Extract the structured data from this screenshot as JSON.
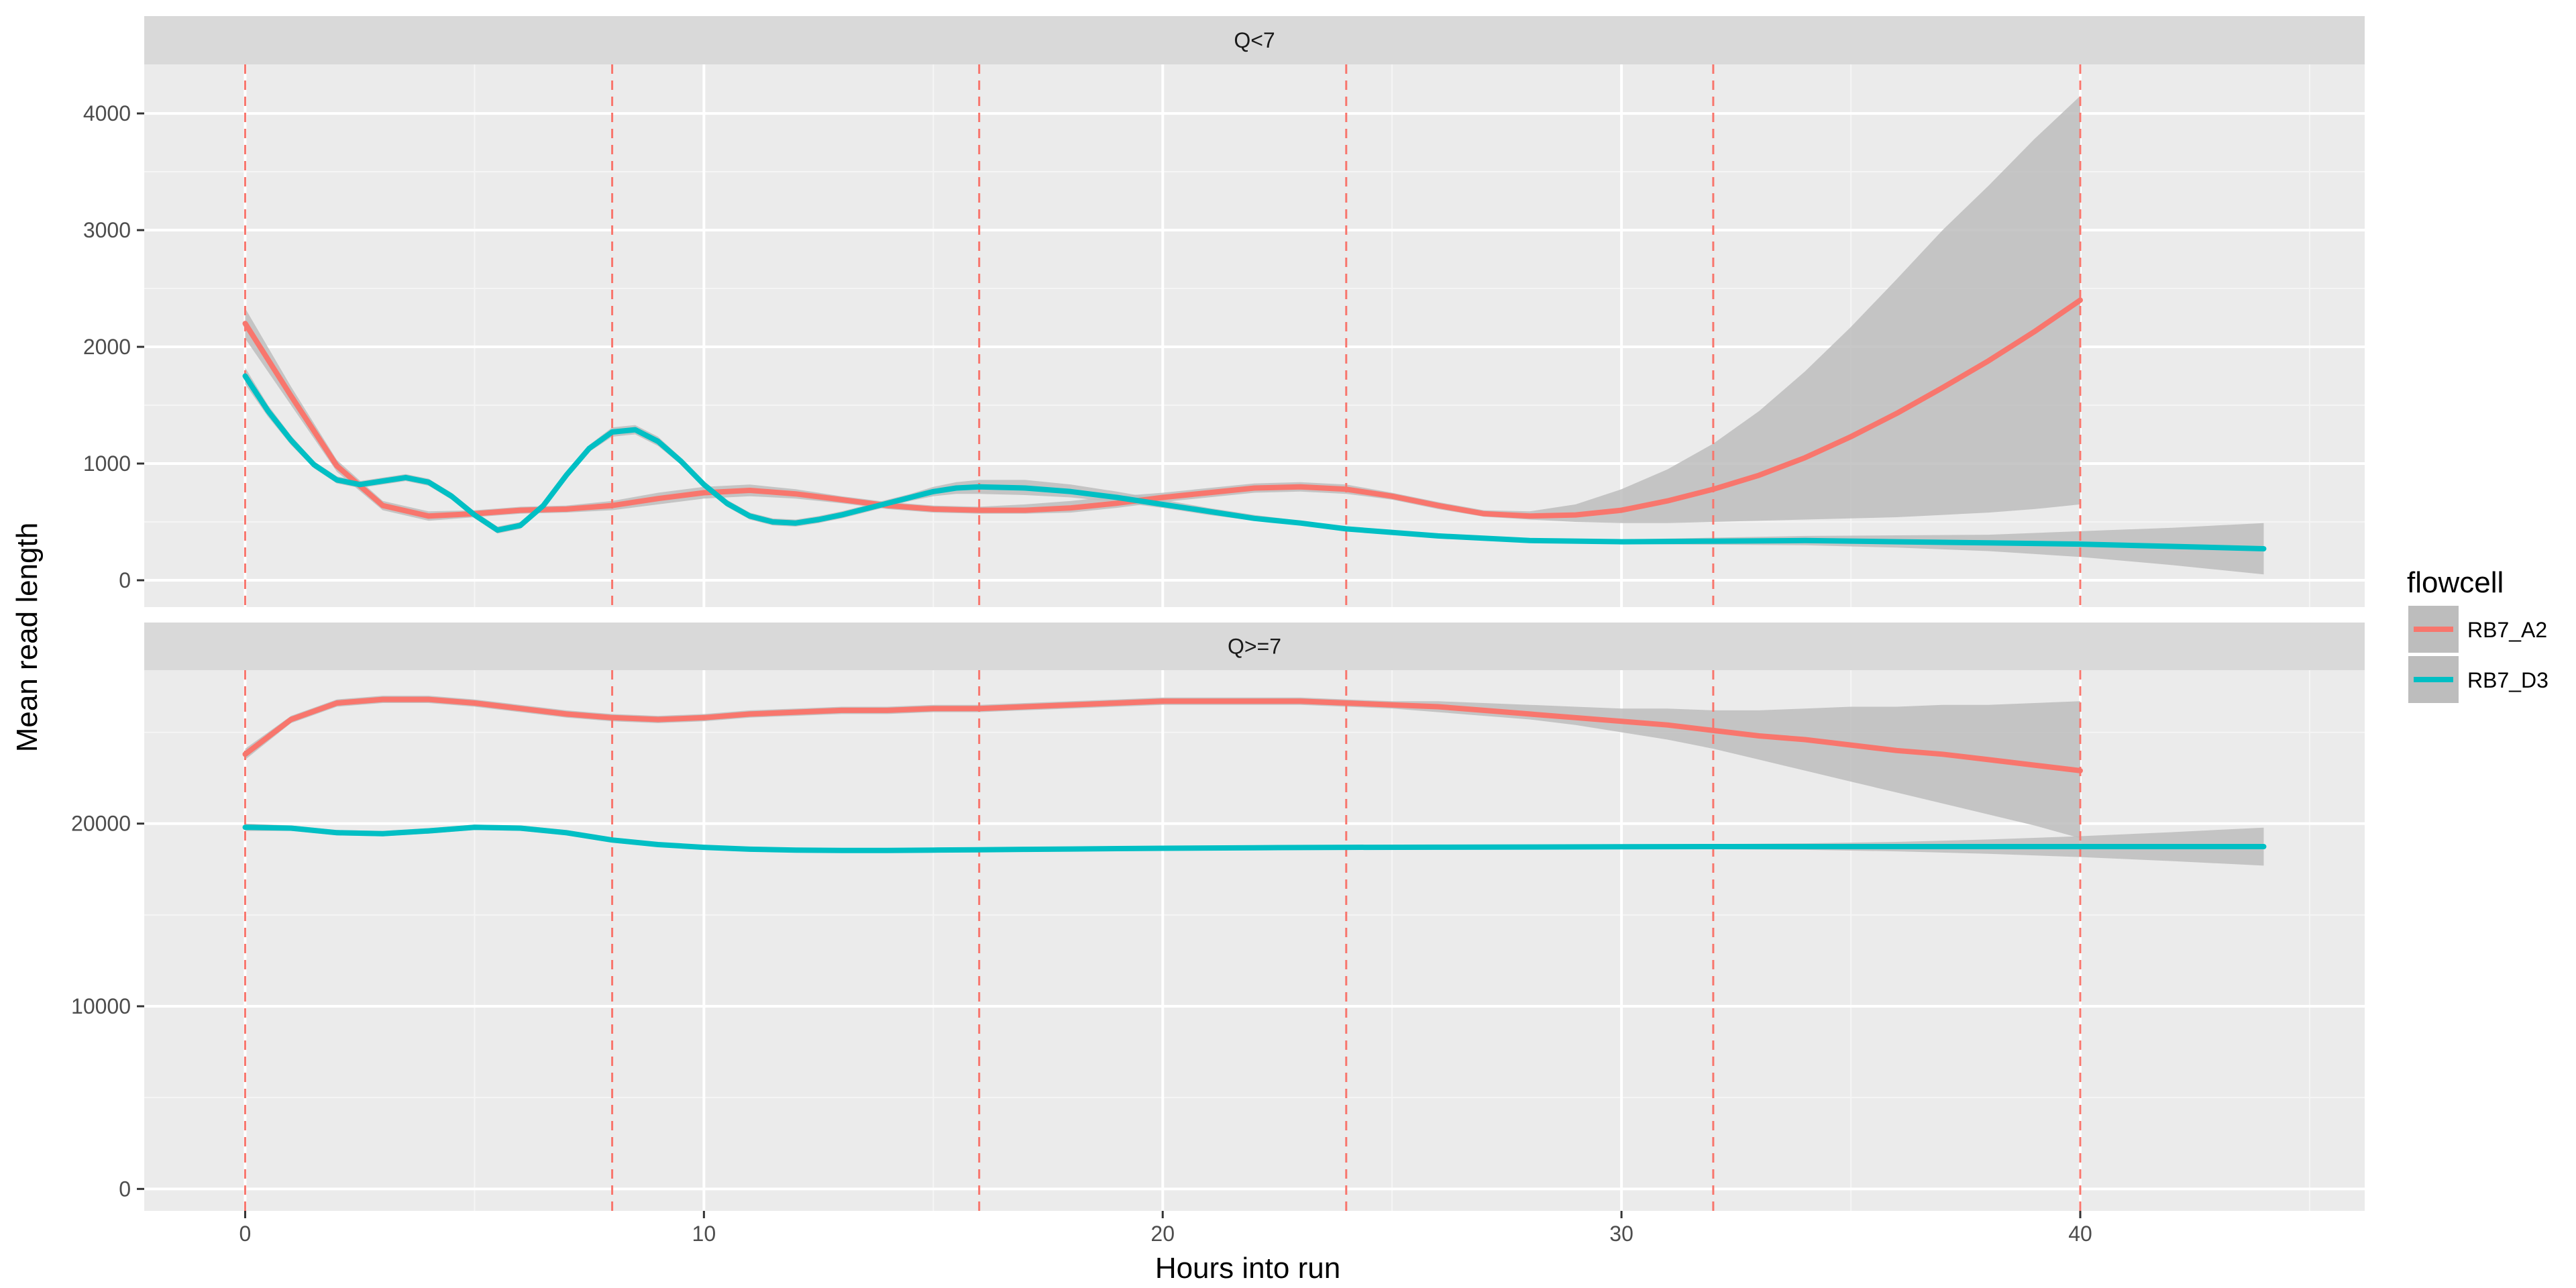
{
  "chart_data": {
    "type": "line",
    "xlabel": "Hours into run",
    "ylabel": "Mean read length",
    "xlim": [
      -2.2,
      46.2
    ],
    "x_ticks": [
      0,
      10,
      20,
      30,
      40
    ],
    "grid": true,
    "vlines": [
      0,
      8,
      16,
      24,
      32,
      40
    ],
    "vline_color": "#F8766D",
    "legend": {
      "title": "flowcell",
      "position": "right",
      "entries": [
        {
          "label": "RB7_A2",
          "color": "#F8766D"
        },
        {
          "label": "RB7_D3",
          "color": "#00BFC4"
        }
      ]
    },
    "ribbon_color": "#BDBDBD",
    "panels": [
      {
        "strip": "Q<7",
        "ylim": [
          -230,
          4420
        ],
        "y_ticks": [
          0,
          1000,
          2000,
          3000,
          4000
        ],
        "y_tick_labels": [
          "0",
          "1000",
          "2000",
          "3000",
          "4000"
        ],
        "series": [
          {
            "name": "RB7_A2",
            "color": "#F8766D",
            "x": [
              0,
              1,
              2,
              3,
              4,
              5,
              6,
              7,
              8,
              9,
              10,
              11,
              12,
              13,
              14,
              15,
              16,
              17,
              18,
              19,
              20,
              21,
              22,
              23,
              24,
              25,
              26,
              27,
              28,
              29,
              30,
              31,
              32,
              33,
              34,
              35,
              36,
              37,
              38,
              39,
              40
            ],
            "values": [
              2200,
              1580,
              980,
              640,
              550,
              570,
              600,
              610,
              640,
              700,
              750,
              770,
              740,
              690,
              640,
              610,
              600,
              600,
              620,
              660,
              710,
              750,
              790,
              800,
              780,
              720,
              640,
              570,
              550,
              560,
              600,
              680,
              780,
              900,
              1050,
              1230,
              1430,
              1650,
              1880,
              2130,
              2400
            ],
            "ci_low": [
              2070,
              1500,
              930,
              600,
              510,
              540,
              570,
              580,
              600,
              650,
              700,
              720,
              700,
              660,
              610,
              580,
              570,
              570,
              580,
              620,
              670,
              710,
              750,
              760,
              740,
              690,
              610,
              545,
              520,
              500,
              490,
              490,
              500,
              510,
              520,
              530,
              540,
              560,
              580,
              610,
              650
            ],
            "ci_high": [
              2330,
              1660,
              1030,
              680,
              590,
              600,
              630,
              640,
              680,
              750,
              800,
              820,
              780,
              720,
              670,
              640,
              630,
              650,
              680,
              720,
              750,
              790,
              830,
              840,
              820,
              750,
              670,
              600,
              590,
              650,
              780,
              950,
              1170,
              1450,
              1790,
              2170,
              2580,
              3000,
              3380,
              3780,
              4150
            ]
          },
          {
            "name": "RB7_D3",
            "color": "#00BFC4",
            "x": [
              0,
              0.5,
              1,
              1.5,
              2,
              2.5,
              3,
              3.5,
              4,
              4.5,
              5,
              5.5,
              6,
              6.5,
              7,
              7.5,
              8,
              8.5,
              9,
              9.5,
              10,
              10.5,
              11,
              11.5,
              12,
              12.5,
              13,
              13.5,
              14,
              14.5,
              15,
              15.5,
              16,
              17,
              18,
              19,
              20,
              21,
              22,
              23,
              24,
              26,
              28,
              30,
              32,
              34,
              36,
              38,
              40,
              42,
              44
            ],
            "values": [
              1750,
              1450,
              1200,
              990,
              860,
              820,
              850,
              880,
              840,
              720,
              560,
              430,
              470,
              640,
              900,
              1130,
              1270,
              1290,
              1190,
              1020,
              820,
              660,
              550,
              500,
              490,
              520,
              560,
              610,
              660,
              710,
              760,
              790,
              800,
              790,
              760,
              710,
              650,
              590,
              530,
              490,
              440,
              380,
              340,
              330,
              335,
              340,
              330,
              320,
              310,
              290,
              270
            ],
            "ci_low": [
              1680,
              1400,
              1160,
              960,
              830,
              790,
              820,
              850,
              810,
              690,
              530,
              400,
              440,
              610,
              870,
              1100,
              1230,
              1250,
              1150,
              990,
              790,
              630,
              520,
              470,
              460,
              490,
              530,
              580,
              630,
              680,
              720,
              740,
              740,
              730,
              710,
              670,
              620,
              560,
              510,
              470,
              420,
              360,
              320,
              310,
              305,
              300,
              280,
              250,
              200,
              130,
              50
            ],
            "ci_high": [
              1820,
              1500,
              1240,
              1020,
              890,
              850,
              880,
              910,
              870,
              750,
              590,
              460,
              500,
              670,
              930,
              1160,
              1310,
              1330,
              1230,
              1050,
              850,
              690,
              580,
              530,
              520,
              550,
              590,
              640,
              690,
              740,
              800,
              840,
              860,
              860,
              820,
              760,
              690,
              620,
              560,
              510,
              460,
              400,
              360,
              350,
              365,
              380,
              385,
              390,
              420,
              450,
              490
            ]
          }
        ]
      },
      {
        "strip": "Q>=7",
        "ylim": [
          -1200,
          28400
        ],
        "y_ticks": [
          0,
          10000,
          20000
        ],
        "y_tick_labels": [
          "0",
          "10000",
          "20000"
        ],
        "series": [
          {
            "name": "RB7_A2",
            "color": "#F8766D",
            "x": [
              0,
              1,
              2,
              3,
              4,
              5,
              6,
              7,
              8,
              9,
              10,
              11,
              12,
              13,
              14,
              15,
              16,
              17,
              18,
              19,
              20,
              21,
              22,
              23,
              24,
              25,
              26,
              27,
              28,
              29,
              30,
              31,
              32,
              33,
              34,
              35,
              36,
              37,
              38,
              39,
              40
            ],
            "values": [
              23800,
              25700,
              26600,
              26800,
              26800,
              26600,
              26300,
              26000,
              25800,
              25700,
              25800,
              26000,
              26100,
              26200,
              26200,
              26300,
              26300,
              26400,
              26500,
              26600,
              26700,
              26700,
              26700,
              26700,
              26600,
              26500,
              26400,
              26200,
              26000,
              25800,
              25600,
              25400,
              25100,
              24800,
              24600,
              24300,
              24000,
              23800,
              23500,
              23200,
              22900
            ],
            "ci_low": [
              23500,
              25500,
              26400,
              26600,
              26600,
              26400,
              26100,
              25800,
              25600,
              25500,
              25600,
              25800,
              25900,
              26000,
              26000,
              26100,
              26100,
              26200,
              26300,
              26400,
              26500,
              26500,
              26500,
              26500,
              26400,
              26300,
              26100,
              25900,
              25700,
              25400,
              25000,
              24600,
              24100,
              23500,
              22900,
              22300,
              21700,
              21100,
              20500,
              19900,
              19200
            ],
            "ci_high": [
              24100,
              25900,
              26800,
              27000,
              27000,
              26800,
              26500,
              26200,
              26000,
              25900,
              26000,
              26200,
              26300,
              26400,
              26400,
              26500,
              26500,
              26600,
              26700,
              26800,
              26900,
              26900,
              26900,
              26900,
              26800,
              26700,
              26700,
              26600,
              26500,
              26400,
              26300,
              26300,
              26200,
              26200,
              26300,
              26400,
              26400,
              26500,
              26500,
              26600,
              26700
            ]
          },
          {
            "name": "RB7_D3",
            "color": "#00BFC4",
            "x": [
              0,
              1,
              2,
              3,
              4,
              5,
              6,
              7,
              8,
              9,
              10,
              11,
              12,
              13,
              14,
              15,
              16,
              17,
              18,
              19,
              20,
              22,
              24,
              26,
              28,
              30,
              32,
              34,
              36,
              38,
              40,
              42,
              44
            ],
            "values": [
              19800,
              19750,
              19500,
              19450,
              19600,
              19800,
              19750,
              19500,
              19100,
              18850,
              18700,
              18600,
              18550,
              18530,
              18530,
              18550,
              18570,
              18590,
              18610,
              18630,
              18650,
              18680,
              18700,
              18710,
              18720,
              18730,
              18740,
              18740,
              18740,
              18740,
              18740,
              18740,
              18740
            ],
            "ci_low": [
              19600,
              19600,
              19350,
              19300,
              19450,
              19650,
              19600,
              19350,
              18950,
              18720,
              18580,
              18490,
              18450,
              18430,
              18430,
              18450,
              18470,
              18490,
              18510,
              18530,
              18550,
              18580,
              18600,
              18610,
              18610,
              18610,
              18600,
              18560,
              18480,
              18350,
              18170,
              17950,
              17700
            ],
            "ci_high": [
              20000,
              19900,
              19650,
              19600,
              19750,
              19950,
              19900,
              19650,
              19250,
              18980,
              18820,
              18710,
              18650,
              18630,
              18630,
              18650,
              18670,
              18690,
              18710,
              18730,
              18750,
              18780,
              18800,
              18810,
              18830,
              18850,
              18880,
              18920,
              19000,
              19130,
              19310,
              19530,
              19780
            ]
          }
        ]
      }
    ]
  }
}
